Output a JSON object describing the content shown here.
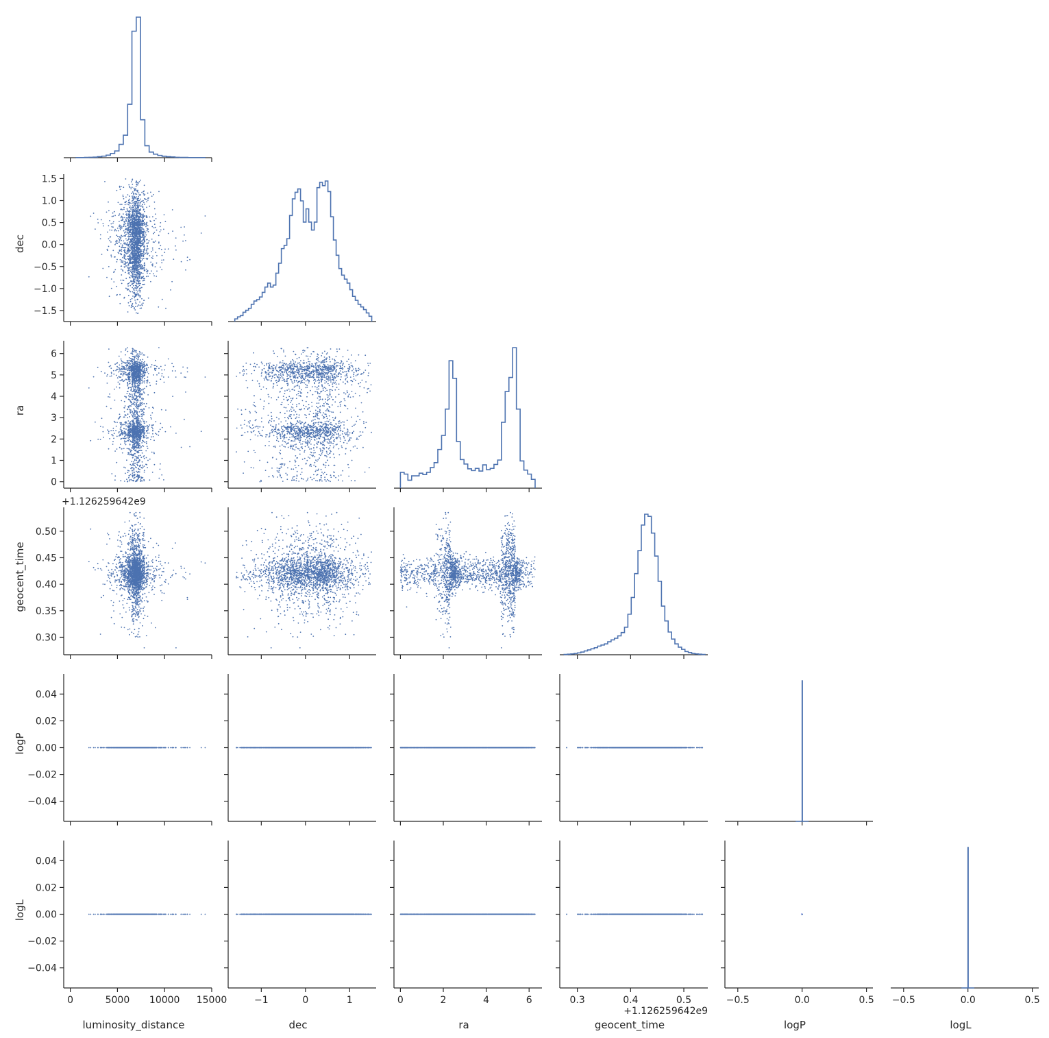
{
  "colors": {
    "series": "#4c72b0",
    "axis": "#262626",
    "background": "#ffffff"
  },
  "chart_data": {
    "type": "corner",
    "variables": [
      {
        "name": "luminosity_distance",
        "label": "luminosity_distance",
        "ticks": [
          0,
          5000,
          10000,
          15000
        ],
        "tick_labels": [
          "0",
          "5000",
          "10000",
          "15000"
        ],
        "range": [
          -700,
          15000
        ],
        "hist_range": [
          600,
          14300
        ]
      },
      {
        "name": "dec",
        "label": "dec",
        "ticks": [
          -1.5,
          -1.0,
          -0.5,
          0.0,
          0.5,
          1.0,
          1.5
        ],
        "tick_labels": [
          "−1.5",
          "−1.0",
          "−0.5",
          "0.0",
          "0.5",
          "1.0",
          "1.5"
        ],
        "x_ticks": [
          -1,
          0,
          1
        ],
        "x_tick_labels": [
          "−1",
          "0",
          "1"
        ],
        "range": [
          -1.75,
          1.6
        ],
        "hist_range": [
          -1.6,
          1.5
        ]
      },
      {
        "name": "ra",
        "label": "ra",
        "ticks": [
          0,
          1,
          2,
          3,
          4,
          5,
          6
        ],
        "tick_labels": [
          "0",
          "1",
          "2",
          "3",
          "4",
          "5",
          "6"
        ],
        "x_ticks": [
          0,
          2,
          4,
          6
        ],
        "x_tick_labels": [
          "0",
          "2",
          "4",
          "6"
        ],
        "range": [
          -0.3,
          6.6
        ],
        "hist_range": [
          0.0,
          6.28
        ]
      },
      {
        "name": "geocent_time",
        "label": "geocent_time",
        "offset": "+1.126259642e9",
        "ticks": [
          0.3,
          0.35,
          0.4,
          0.45,
          0.5
        ],
        "tick_labels": [
          "0.30",
          "0.35",
          "0.40",
          "0.45",
          "0.50"
        ],
        "x_ticks": [
          0.3,
          0.4,
          0.5
        ],
        "x_tick_labels": [
          "0.3",
          "0.4",
          "0.5"
        ],
        "range": [
          0.267,
          0.545
        ],
        "hist_range": [
          0.275,
          0.54
        ]
      },
      {
        "name": "logP",
        "label": "logP",
        "ticks": [
          -0.04,
          -0.02,
          0.0,
          0.02,
          0.04
        ],
        "tick_labels": [
          "−0.04",
          "−0.02",
          "0.00",
          "0.02",
          "0.04"
        ],
        "x_ticks": [
          -0.5,
          0.0,
          0.5
        ],
        "x_tick_labels": [
          "−0.5",
          "0.0",
          "0.5"
        ],
        "range": [
          -0.055,
          0.055
        ],
        "x_range": [
          -0.6,
          0.55
        ],
        "hist_range": [
          -0.05,
          0.05
        ]
      },
      {
        "name": "logL",
        "label": "logL",
        "ticks": [
          -0.04,
          -0.02,
          0.0,
          0.02,
          0.04
        ],
        "tick_labels": [
          "−0.04",
          "−0.02",
          "0.00",
          "0.02",
          "0.04"
        ],
        "x_ticks": [
          -0.5,
          0.0,
          0.5
        ],
        "x_tick_labels": [
          "−0.5",
          "0.0",
          "0.5"
        ],
        "range": [
          -0.055,
          0.055
        ],
        "x_range": [
          -0.6,
          0.55
        ],
        "hist_range": [
          -0.05,
          0.05
        ]
      }
    ],
    "histograms": {
      "luminosity_distance": [
        1,
        1,
        2,
        3,
        4,
        7,
        11,
        18,
        30,
        48,
        95,
        160,
        380,
        900,
        1000,
        270,
        85,
        40,
        25,
        16,
        10,
        7,
        5,
        3,
        2,
        2,
        1,
        1,
        1,
        1
      ],
      "dec": [
        4,
        7,
        9,
        14,
        17,
        20,
        26,
        31,
        33,
        37,
        44,
        52,
        58,
        52,
        55,
        73,
        88,
        110,
        115,
        125,
        160,
        185,
        195,
        200,
        182,
        150,
        170,
        150,
        138,
        150,
        202,
        210,
        205,
        212,
        196,
        158,
        123,
        100,
        80,
        70,
        64,
        58,
        48,
        38,
        32,
        26,
        22,
        18,
        13,
        8
      ],
      "ra": [
        36,
        32,
        18,
        28,
        28,
        34,
        31,
        36,
        47,
        58,
        88,
        120,
        180,
        290,
        250,
        106,
        65,
        55,
        44,
        40,
        45,
        39,
        53,
        42,
        45,
        54,
        64,
        150,
        220,
        252,
        320,
        180,
        62,
        41,
        32,
        20
      ],
      "geocent_time": [
        1,
        2,
        3,
        5,
        7,
        10,
        14,
        18,
        22,
        26,
        32,
        36,
        40,
        48,
        55,
        61,
        70,
        82,
        102,
        150,
        212,
        300,
        385,
        480,
        520,
        512,
        450,
        365,
        272,
        180,
        125,
        84,
        58,
        40,
        28,
        20,
        12,
        8,
        5,
        3,
        2,
        1
      ],
      "logP": [
        0,
        0,
        0,
        0,
        0,
        0,
        0,
        0,
        0,
        0,
        0,
        0,
        0,
        0,
        0,
        0,
        0,
        0,
        0,
        0,
        0,
        0,
        0,
        0,
        0,
        1,
        0,
        0,
        0,
        0,
        0,
        0,
        0,
        0,
        0,
        0,
        0,
        0,
        0,
        0,
        0,
        0,
        0,
        0,
        0,
        0,
        0,
        0,
        0,
        0
      ],
      "logL": [
        0,
        0,
        0,
        0,
        0,
        0,
        0,
        0,
        0,
        0,
        0,
        0,
        0,
        0,
        0,
        0,
        0,
        0,
        0,
        0,
        0,
        0,
        0,
        0,
        0,
        1,
        0,
        0,
        0,
        0,
        0,
        0,
        0,
        0,
        0,
        0,
        0,
        0,
        0,
        0,
        0,
        0,
        0,
        0,
        0,
        0,
        0,
        0,
        0,
        0
      ]
    },
    "grid": false,
    "legend": "none"
  }
}
